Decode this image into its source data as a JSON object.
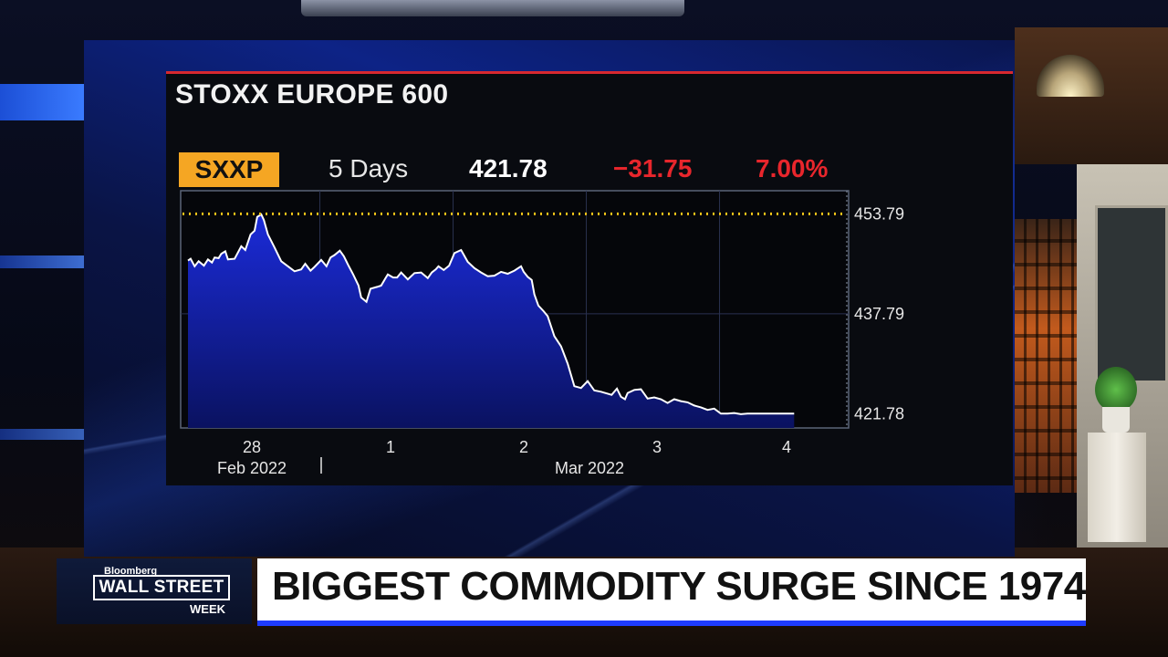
{
  "chart_data": {
    "type": "area",
    "title": "STOXX EUROPE 600",
    "ticker": "SXXP",
    "period": "5 Days",
    "last": "421.78",
    "change": "−31.75",
    "change_pct": "7.00%",
    "ylim": [
      419.5,
      457.5
    ],
    "y_ticks": [
      453.79,
      437.79,
      421.78
    ],
    "y_tick_labels": [
      "453.79",
      "437.79",
      "421.78"
    ],
    "reference_line": 453.79,
    "x_tick_labels": [
      {
        "day": "28",
        "month": "Feb 2022"
      },
      {
        "day": "1",
        "month": ""
      },
      {
        "day": "2",
        "month": "Mar 2022"
      },
      {
        "day": "3",
        "month": ""
      },
      {
        "day": "4",
        "month": ""
      }
    ],
    "x": [
      0,
      0.02,
      0.05,
      0.08,
      0.12,
      0.15,
      0.18,
      0.2,
      0.23,
      0.25,
      0.28,
      0.3,
      0.35,
      0.4,
      0.43,
      0.47,
      0.5,
      0.52,
      0.55,
      0.57,
      0.6,
      0.65,
      0.7,
      0.75,
      0.8,
      0.85,
      0.88,
      0.92,
      0.95,
      1.0,
      1.04,
      1.07,
      1.1,
      1.14,
      1.17,
      1.2,
      1.24,
      1.28,
      1.3,
      1.34,
      1.37,
      1.42,
      1.45,
      1.48,
      1.5,
      1.54,
      1.57,
      1.6,
      1.65,
      1.7,
      1.75,
      1.8,
      1.83,
      1.86,
      1.88,
      1.92,
      1.96,
      2.0,
      2.05,
      2.1,
      2.15,
      2.2,
      2.25,
      2.3,
      2.35,
      2.4,
      2.45,
      2.5,
      2.52,
      2.55,
      2.58,
      2.6,
      2.63,
      2.67,
      2.7,
      2.75,
      2.8,
      2.85,
      2.9,
      2.95,
      3.0,
      3.05,
      3.1,
      3.15,
      3.18,
      3.22,
      3.25,
      3.28,
      3.3,
      3.35,
      3.4,
      3.45,
      3.5,
      3.55,
      3.6,
      3.65,
      3.7,
      3.75,
      3.8,
      3.85,
      3.9,
      3.95,
      4.0,
      4.05,
      4.1,
      4.15,
      4.2,
      4.25,
      4.3,
      4.35,
      4.4,
      4.45,
      4.5,
      4.55
    ],
    "values": [
      446.3,
      446.6,
      445.4,
      446.2,
      445.5,
      446.5,
      446.0,
      446.8,
      446.7,
      447.4,
      447.8,
      446.5,
      446.6,
      448.6,
      448.0,
      450.5,
      451.1,
      453.3,
      453.7,
      452.8,
      450.5,
      448.4,
      446.2,
      445.4,
      444.6,
      444.9,
      445.8,
      444.7,
      445.3,
      446.4,
      445.4,
      446.8,
      447.2,
      447.9,
      447.0,
      445.7,
      444.1,
      442.3,
      440.4,
      439.7,
      441.8,
      442.1,
      442.3,
      443.4,
      444.1,
      443.6,
      443.6,
      444.4,
      443.3,
      444.3,
      444.4,
      443.5,
      444.4,
      444.9,
      445.4,
      444.8,
      445.5,
      447.5,
      448.0,
      446.1,
      445.1,
      444.4,
      443.8,
      443.9,
      444.5,
      444.2,
      444.7,
      445.4,
      444.5,
      443.7,
      443.2,
      440.9,
      439.1,
      438.2,
      437.4,
      434.2,
      432.6,
      429.8,
      426.2,
      425.9,
      427.0,
      425.5,
      425.3,
      425.0,
      424.8,
      425.8,
      424.5,
      424.1,
      425.1,
      425.6,
      425.7,
      424.2,
      424.4,
      424.1,
      423.5,
      424.1,
      423.8,
      423.6,
      423.1,
      422.8,
      422.4,
      422.6,
      421.8,
      421.8,
      421.9,
      421.7,
      421.8,
      421.8,
      421.8,
      421.8,
      421.8,
      421.8,
      421.8,
      421.8
    ]
  },
  "headline": "BIGGEST COMMODITY SURGE SINCE 1974",
  "logo": {
    "brand": "Bloomberg",
    "main": "WALL STREET",
    "sub": "WEEK"
  },
  "colors": {
    "area_top": "#1b2bd9",
    "area_bottom": "#0a1260",
    "line": "#ffffff",
    "reference": "#f5c518",
    "negative": "#e8262c",
    "ticker_bg": "#f5a623"
  }
}
